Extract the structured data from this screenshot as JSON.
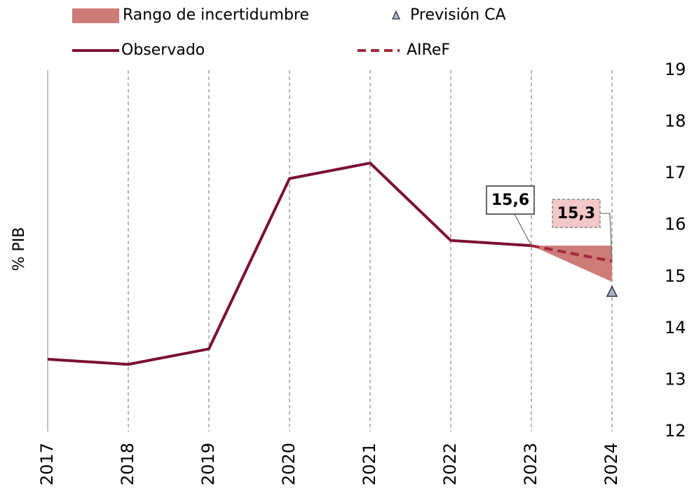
{
  "chart_data": {
    "type": "line",
    "ylabel": "% PIB",
    "categories": [
      "2017",
      "2018",
      "2019",
      "2020",
      "2021",
      "2022",
      "2023",
      "2024"
    ],
    "ylim": [
      12,
      19
    ],
    "yticks": [
      12,
      13,
      14,
      15,
      16,
      17,
      18,
      19
    ],
    "grid": true,
    "series": [
      {
        "name": "Rango de incertidumbre",
        "color": "#cd7c78",
        "style": "band",
        "values": [
          null,
          null,
          null,
          null,
          null,
          null,
          15.6,
          15.6
        ],
        "lower": [
          null,
          null,
          null,
          null,
          null,
          null,
          15.6,
          14.9
        ]
      },
      {
        "name": "Previsión CA",
        "color": "#aab5c8",
        "style": "marker",
        "values": [
          null,
          null,
          null,
          null,
          null,
          null,
          null,
          14.7
        ]
      },
      {
        "name": "Observado",
        "color": "#7b1030",
        "style": "solid",
        "values": [
          13.4,
          13.3,
          13.6,
          16.9,
          17.2,
          15.7,
          15.6,
          null
        ],
        "value_labels": [
          null,
          null,
          null,
          null,
          null,
          null,
          "15,6",
          null
        ]
      },
      {
        "name": "AIReF",
        "color": "#a3283a",
        "style": "dashed",
        "values": [
          null,
          null,
          null,
          null,
          null,
          null,
          15.6,
          15.3
        ],
        "value_labels": [
          null,
          null,
          null,
          null,
          null,
          null,
          null,
          "15,3"
        ]
      }
    ]
  }
}
